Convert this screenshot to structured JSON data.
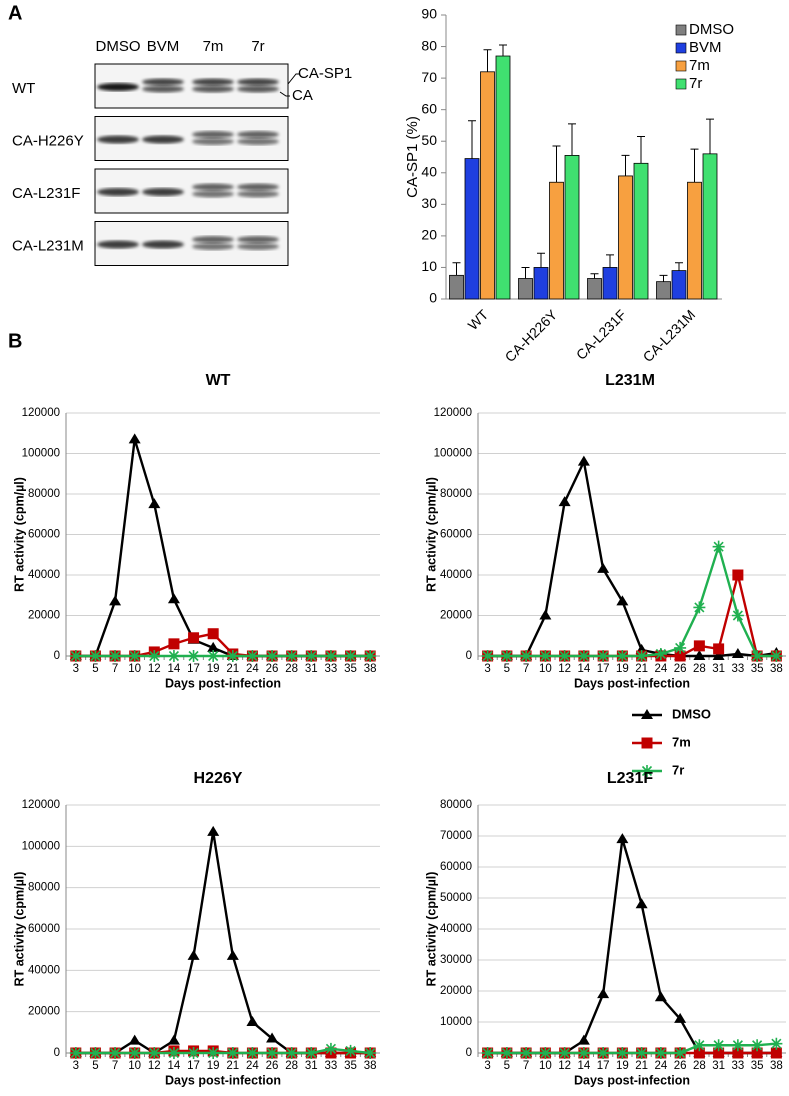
{
  "panel_labels": [
    "A",
    "B"
  ],
  "blot": {
    "lanes": [
      "DMSO",
      "BVM",
      "7m",
      "7r"
    ],
    "rows": [
      "WT",
      "CA-H226Y",
      "CA-L231F",
      "CA-L231M"
    ],
    "band_labels": [
      "CA-SP1",
      "CA"
    ]
  },
  "chart_data": [
    {
      "type": "bar",
      "ylabel": "CA-SP1 (%)",
      "categories": [
        "WT",
        "CA-H226Y",
        "CA-L231F",
        "CA-L231M"
      ],
      "series": [
        {
          "name": "DMSO",
          "color": "#808080",
          "values": [
            7.5,
            6.5,
            6.5,
            5.5
          ],
          "errors": [
            4,
            3.5,
            1.5,
            2
          ]
        },
        {
          "name": "BVM",
          "color": "#1f3fe0",
          "values": [
            44.5,
            10,
            10,
            9
          ],
          "errors": [
            12,
            4.5,
            4,
            2.5
          ]
        },
        {
          "name": "7m",
          "color": "#f7a040",
          "values": [
            72,
            37,
            39,
            37
          ],
          "errors": [
            7,
            11.5,
            6.5,
            10.5
          ]
        },
        {
          "name": "7r",
          "color": "#40e070",
          "values": [
            77,
            45.5,
            43,
            46
          ],
          "errors": [
            3.5,
            10,
            8.5,
            11
          ]
        }
      ],
      "ylim": [
        0,
        90
      ],
      "yticks": [
        0,
        10,
        20,
        30,
        40,
        50,
        60,
        70,
        80,
        90
      ],
      "legend": "top-right"
    },
    {
      "type": "line",
      "title": "WT",
      "xlabel": "Days post-infection",
      "ylabel": "RT activity (cpm/µl)",
      "categories": [
        "3",
        "5",
        "7",
        "10",
        "12",
        "14",
        "17",
        "19",
        "21",
        "24",
        "26",
        "28",
        "31",
        "33",
        "35",
        "38"
      ],
      "series": [
        {
          "name": "DMSO",
          "color": "#000000",
          "marker": "triangle",
          "values": [
            0,
            0,
            27000,
            107000,
            75000,
            28000,
            8000,
            4000,
            0,
            0,
            0,
            0,
            0,
            0,
            0,
            0
          ]
        },
        {
          "name": "7m",
          "color": "#c00000",
          "marker": "square",
          "values": [
            0,
            0,
            0,
            0,
            2000,
            6000,
            9000,
            11000,
            1000,
            0,
            0,
            0,
            0,
            0,
            0,
            0
          ]
        },
        {
          "name": "7r",
          "color": "#20b050",
          "marker": "star",
          "values": [
            0,
            0,
            0,
            0,
            0,
            0,
            0,
            0,
            0,
            0,
            0,
            0,
            0,
            0,
            0,
            0
          ]
        }
      ],
      "ylim": [
        0,
        120000
      ],
      "yticks": [
        0,
        20000,
        40000,
        60000,
        80000,
        100000,
        120000
      ],
      "grid": true
    },
    {
      "type": "line",
      "title": "L231M",
      "xlabel": "Days post-infection",
      "ylabel": "RT activity (cpm/µl)",
      "categories": [
        "3",
        "5",
        "7",
        "10",
        "12",
        "14",
        "17",
        "19",
        "21",
        "24",
        "26",
        "28",
        "31",
        "33",
        "35",
        "38"
      ],
      "series": [
        {
          "name": "DMSO",
          "color": "#000000",
          "marker": "triangle",
          "values": [
            0,
            0,
            0,
            20000,
            76000,
            96000,
            43000,
            27000,
            3000,
            1000,
            0,
            0,
            0,
            1000,
            0,
            1500
          ]
        },
        {
          "name": "7m",
          "color": "#c00000",
          "marker": "square",
          "values": [
            0,
            0,
            0,
            0,
            0,
            0,
            0,
            0,
            0,
            0,
            0,
            5000,
            3500,
            40000,
            0,
            0
          ]
        },
        {
          "name": "7r",
          "color": "#20b050",
          "marker": "star",
          "values": [
            0,
            0,
            0,
            0,
            0,
            0,
            0,
            0,
            0,
            1000,
            4000,
            24000,
            54000,
            20000,
            0,
            0
          ]
        }
      ],
      "ylim": [
        0,
        120000
      ],
      "yticks": [
        0,
        20000,
        40000,
        60000,
        80000,
        100000,
        120000
      ],
      "grid": true,
      "legend": "below"
    },
    {
      "type": "line",
      "title": "H226Y",
      "xlabel": "Days post-infection",
      "ylabel": "RT activity (cpm/µl)",
      "categories": [
        "3",
        "5",
        "7",
        "10",
        "12",
        "14",
        "17",
        "19",
        "21",
        "24",
        "26",
        "28",
        "31",
        "33",
        "35",
        "38"
      ],
      "series": [
        {
          "name": "DMSO",
          "color": "#000000",
          "marker": "triangle",
          "values": [
            0,
            0,
            0,
            6000,
            0,
            6000,
            47000,
            107000,
            47000,
            15000,
            7000,
            0,
            0,
            0,
            0,
            0
          ]
        },
        {
          "name": "7m",
          "color": "#c00000",
          "marker": "square",
          "values": [
            0,
            0,
            0,
            0,
            0,
            1000,
            1000,
            1000,
            0,
            0,
            0,
            0,
            0,
            0,
            0,
            0
          ]
        },
        {
          "name": "7r",
          "color": "#20b050",
          "marker": "star",
          "values": [
            0,
            0,
            0,
            0,
            0,
            0,
            0,
            0,
            0,
            0,
            0,
            0,
            0,
            2000,
            1000,
            0
          ]
        }
      ],
      "ylim": [
        0,
        120000
      ],
      "yticks": [
        0,
        20000,
        40000,
        60000,
        80000,
        100000,
        120000
      ],
      "grid": true
    },
    {
      "type": "line",
      "title": "L231F",
      "xlabel": "Days post-infection",
      "ylabel": "RT activity (cpm/µl)",
      "categories": [
        "3",
        "5",
        "7",
        "10",
        "12",
        "14",
        "17",
        "19",
        "21",
        "24",
        "26",
        "28",
        "31",
        "33",
        "35",
        "38"
      ],
      "series": [
        {
          "name": "DMSO",
          "color": "#000000",
          "marker": "triangle",
          "values": [
            0,
            0,
            0,
            0,
            0,
            4000,
            19000,
            69000,
            48000,
            18000,
            11000,
            0,
            0,
            0,
            0,
            0
          ]
        },
        {
          "name": "7m",
          "color": "#c00000",
          "marker": "square",
          "values": [
            0,
            0,
            0,
            0,
            0,
            0,
            0,
            0,
            0,
            0,
            0,
            0,
            0,
            0,
            0,
            0
          ]
        },
        {
          "name": "7r",
          "color": "#20b050",
          "marker": "star",
          "values": [
            0,
            0,
            0,
            0,
            0,
            0,
            0,
            0,
            0,
            0,
            0,
            2500,
            2500,
            2500,
            2500,
            3000
          ]
        }
      ],
      "ylim": [
        0,
        80000
      ],
      "yticks": [
        0,
        10000,
        20000,
        30000,
        40000,
        50000,
        60000,
        70000,
        80000
      ],
      "grid": true
    }
  ]
}
